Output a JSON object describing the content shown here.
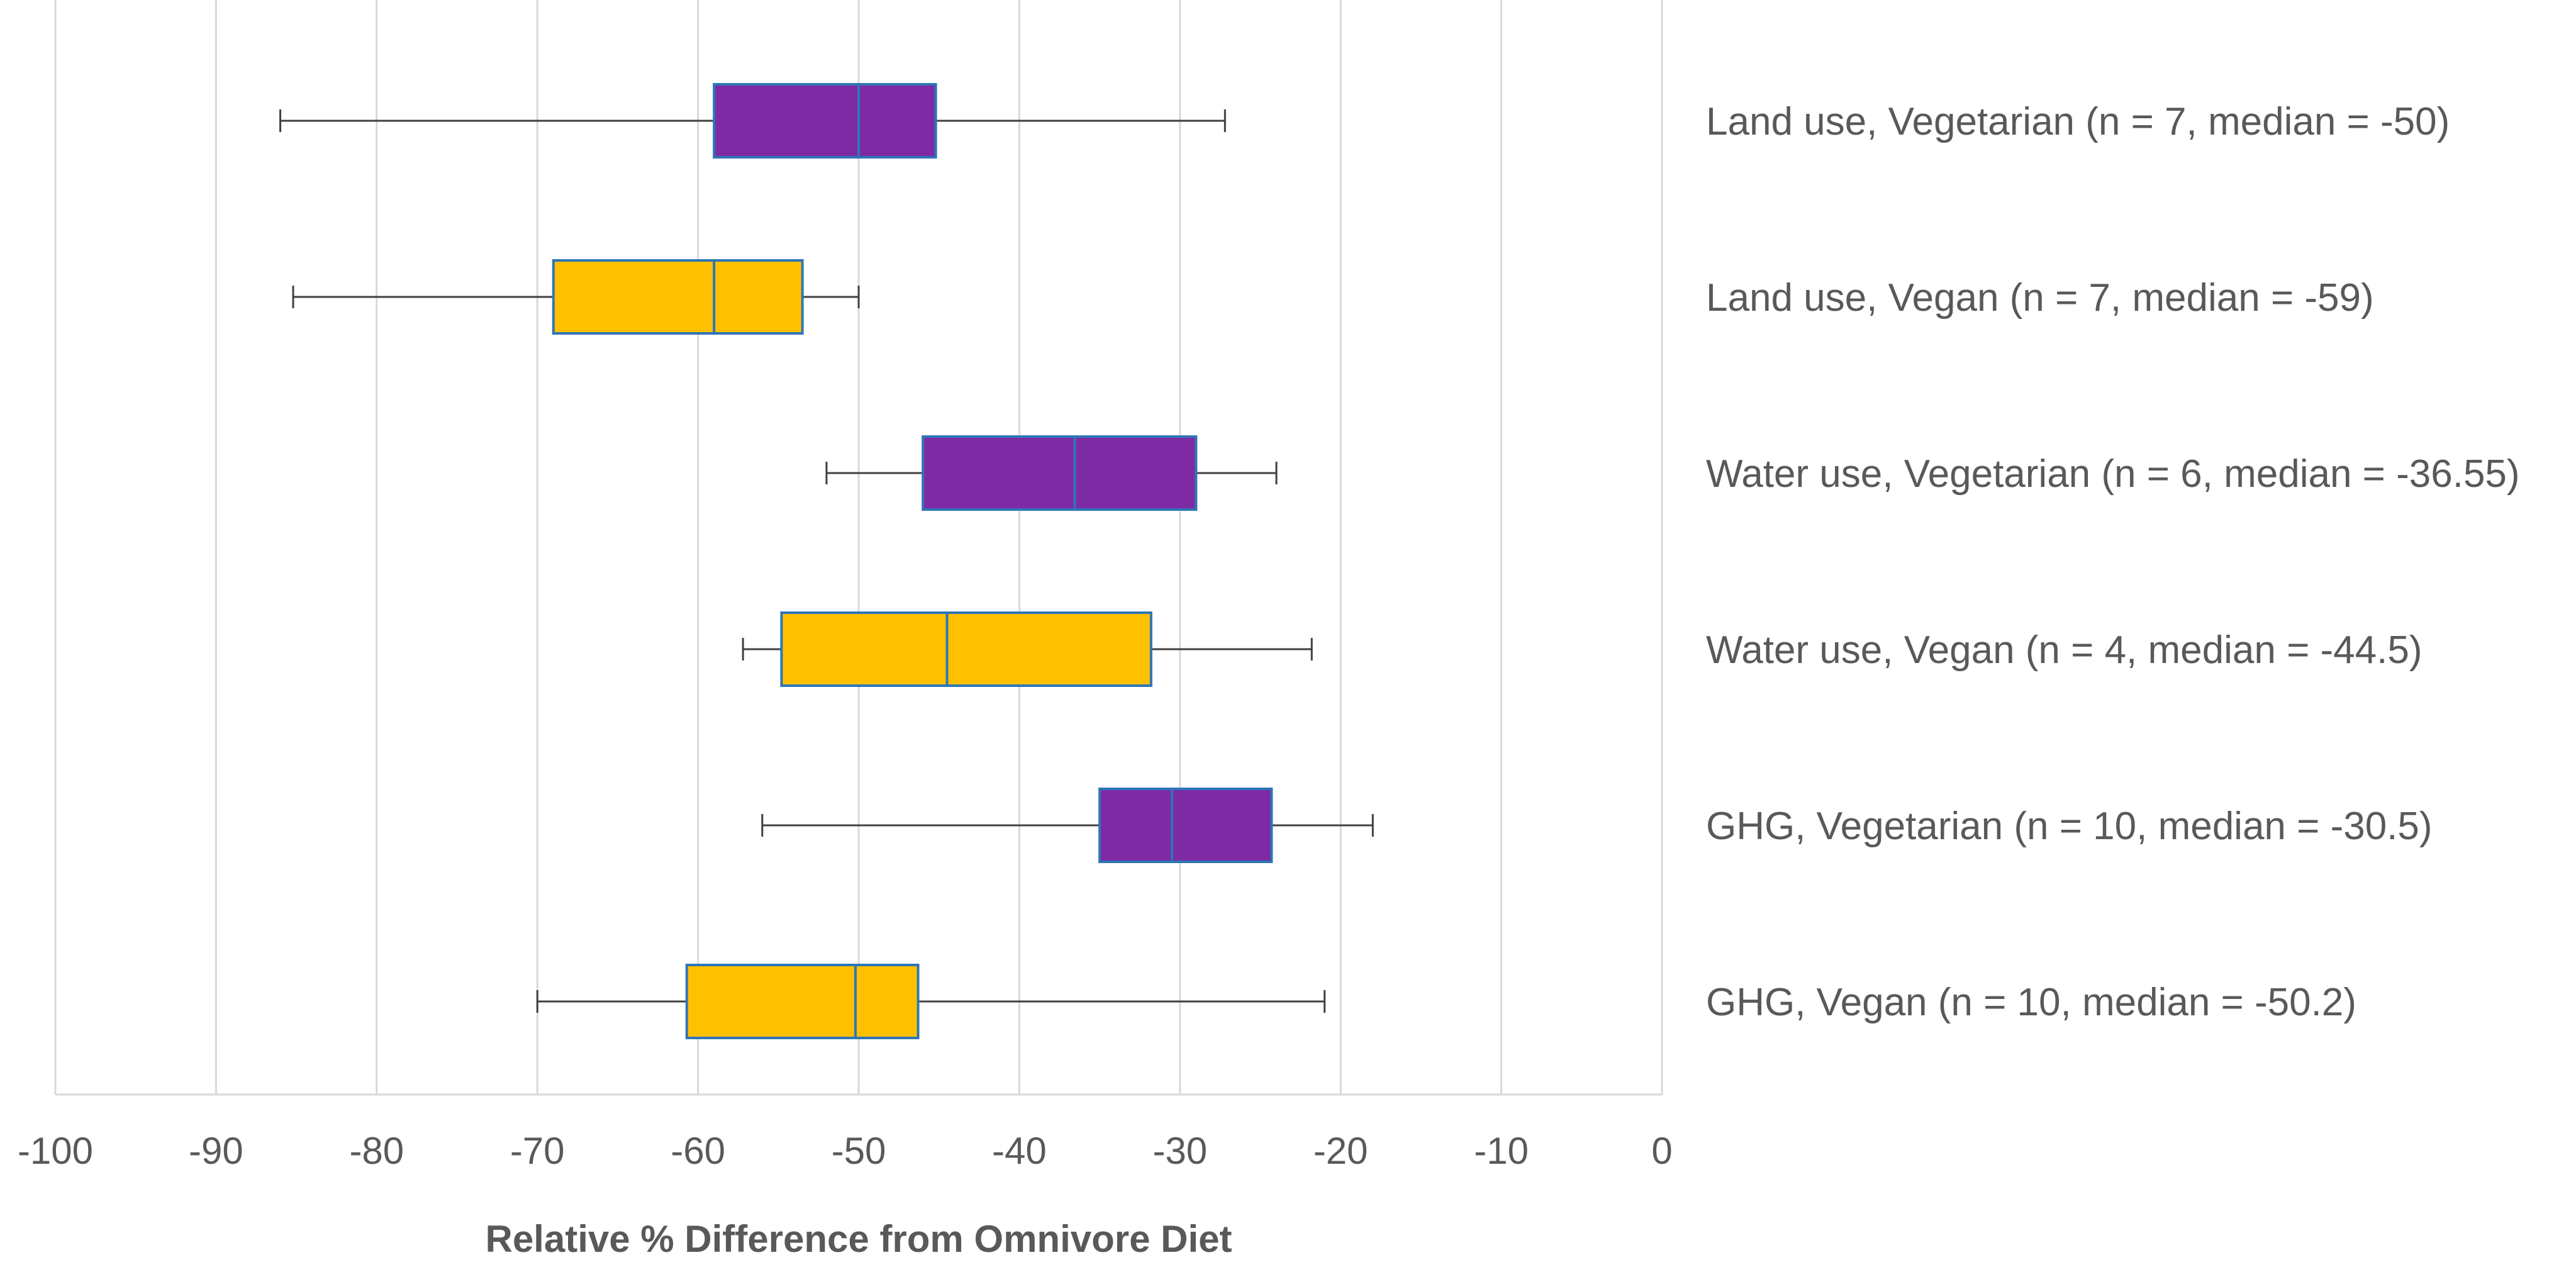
{
  "chart_data": {
    "type": "boxplot",
    "orientation": "horizontal",
    "xlabel": "Relative % Difference from Omnivore Diet",
    "xlim": [
      -100,
      0
    ],
    "xticks": [
      -100,
      -90,
      -80,
      -70,
      -60,
      -50,
      -40,
      -30,
      -20,
      -10,
      0
    ],
    "grid": true,
    "colors": {
      "vegetarian": "#7f2aa5",
      "vegan": "#ffc000",
      "box_border": "#2e75b6",
      "whisker": "#404040",
      "grid": "#d9d9d9"
    },
    "series": [
      {
        "label": "Land use, Vegetarian (n = 7, median = -50)",
        "group": "vegetarian",
        "min": -86,
        "q1": -59,
        "median": -50,
        "q3": -45.2,
        "max": -27.2
      },
      {
        "label": "Land use, Vegan (n = 7, median = -59)",
        "group": "vegan",
        "min": -85.2,
        "q1": -69,
        "median": -59,
        "q3": -53.5,
        "max": -50
      },
      {
        "label": "Water use, Vegetarian (n = 6, median = -36.55)",
        "group": "vegetarian",
        "min": -52,
        "q1": -46,
        "median": -36.55,
        "q3": -29,
        "max": -24
      },
      {
        "label": "Water use, Vegan (n = 4, median = -44.5)",
        "group": "vegan",
        "min": -57.2,
        "q1": -54.8,
        "median": -44.5,
        "q3": -31.8,
        "max": -21.8
      },
      {
        "label": "GHG, Vegetarian (n = 10, median = -30.5)",
        "group": "vegetarian",
        "min": -56,
        "q1": -35,
        "median": -30.5,
        "q3": -24.3,
        "max": -18
      },
      {
        "label": "GHG, Vegan (n = 10, median = -50.2)",
        "group": "vegan",
        "min": -70,
        "q1": -60.7,
        "median": -50.2,
        "q3": -46.3,
        "max": -21
      }
    ]
  }
}
